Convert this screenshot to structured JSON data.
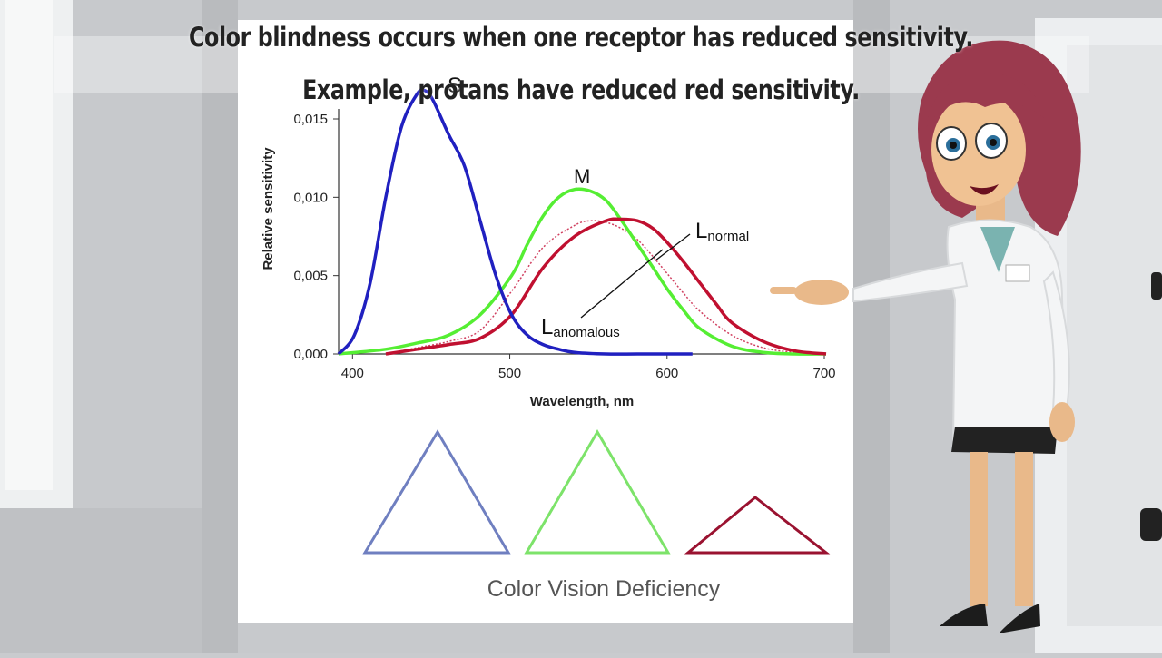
{
  "captions": {
    "line1": "Color blindness occurs when one receptor has reduced sensitivity.",
    "line2": "Example, protans have reduced red sensitivity."
  },
  "board": {
    "bottom_caption": "Color Vision Deficiency"
  },
  "triangles": [
    {
      "name": "S cone",
      "color": "#6f7fc0",
      "relative_size": 1.0
    },
    {
      "name": "M cone",
      "color": "#7de36a",
      "relative_size": 1.0
    },
    {
      "name": "L cone (reduced)",
      "color": "#9a1230",
      "relative_size": 0.45
    }
  ],
  "chart_data": {
    "type": "line",
    "xlabel": "Wavelength, nm",
    "ylabel": "Relative sensitivity",
    "xlim": [
      390,
      700
    ],
    "ylim": [
      0,
      0.016
    ],
    "x_ticks": [
      "400",
      "500",
      "600",
      "700"
    ],
    "y_ticks": [
      "0,000",
      "0,005",
      "0,010",
      "0,015"
    ],
    "grid": false,
    "series": [
      {
        "name": "S",
        "color": "#2020c0",
        "style": "solid",
        "x": [
          390,
          400,
          410,
          420,
          430,
          440,
          445,
          450,
          460,
          470,
          480,
          490,
          500,
          510,
          520,
          530,
          540,
          560,
          580,
          600,
          615
        ],
        "y": [
          0.0,
          0.0012,
          0.0045,
          0.01,
          0.0145,
          0.0166,
          0.0168,
          0.0162,
          0.014,
          0.012,
          0.0085,
          0.005,
          0.0025,
          0.0012,
          0.0006,
          0.0003,
          0.0001,
          0.0,
          0.0,
          0.0,
          0.0
        ]
      },
      {
        "name": "M",
        "color": "#55ee33",
        "style": "solid",
        "x": [
          390,
          420,
          440,
          460,
          480,
          500,
          510,
          520,
          530,
          540,
          550,
          560,
          570,
          580,
          590,
          600,
          610,
          620,
          640,
          660,
          680,
          700
        ],
        "y": [
          0.0,
          0.0003,
          0.0007,
          0.0012,
          0.0025,
          0.005,
          0.007,
          0.0088,
          0.01,
          0.0105,
          0.0104,
          0.0098,
          0.0085,
          0.007,
          0.0055,
          0.004,
          0.0027,
          0.0016,
          0.0005,
          0.0001,
          0.0,
          0.0
        ]
      },
      {
        "name": "L normal",
        "color": "#c01030",
        "style": "solid",
        "x": [
          420,
          440,
          460,
          480,
          500,
          520,
          540,
          560,
          570,
          580,
          590,
          600,
          610,
          620,
          630,
          640,
          660,
          680,
          700
        ],
        "y": [
          0.0,
          0.0003,
          0.0006,
          0.001,
          0.0025,
          0.0055,
          0.0075,
          0.0085,
          0.0086,
          0.0085,
          0.008,
          0.007,
          0.0058,
          0.0045,
          0.0032,
          0.002,
          0.0008,
          0.0002,
          0.0
        ]
      },
      {
        "name": "L anomalous",
        "color": "#d04060",
        "style": "dotted",
        "x": [
          420,
          440,
          460,
          480,
          500,
          520,
          540,
          550,
          560,
          570,
          580,
          590,
          600,
          610,
          620,
          640,
          660,
          680,
          700
        ],
        "y": [
          0.0,
          0.0004,
          0.0008,
          0.0015,
          0.004,
          0.0068,
          0.0082,
          0.0085,
          0.0084,
          0.008,
          0.0073,
          0.0062,
          0.005,
          0.0038,
          0.0027,
          0.0012,
          0.0004,
          0.0001,
          0.0
        ]
      }
    ],
    "labels": {
      "S": "S",
      "M": "M",
      "L_main": "L",
      "L_normal_sub": "normal",
      "L_anomalous_sub": "anomalous"
    }
  }
}
